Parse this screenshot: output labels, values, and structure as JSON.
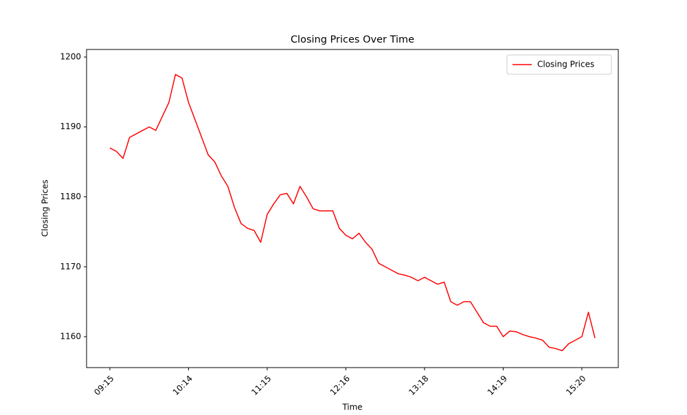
{
  "chart_data": {
    "type": "line",
    "title": "Closing Prices Over Time",
    "xlabel": "Time",
    "ylabel": "Closing Prices",
    "categories": [
      "09:15",
      null,
      null,
      null,
      null,
      null,
      null,
      null,
      null,
      null,
      null,
      null,
      "10:14",
      null,
      null,
      null,
      null,
      null,
      null,
      null,
      null,
      null,
      null,
      null,
      "11:15",
      null,
      null,
      null,
      null,
      null,
      null,
      null,
      null,
      null,
      null,
      null,
      "12:16",
      null,
      null,
      null,
      null,
      null,
      null,
      null,
      null,
      null,
      null,
      null,
      "13:18",
      null,
      null,
      null,
      null,
      null,
      null,
      null,
      null,
      null,
      null,
      null,
      "14:19",
      null,
      null,
      null,
      null,
      null,
      null,
      null,
      null,
      null,
      null,
      null,
      "15:20",
      null,
      null
    ],
    "series": [
      {
        "name": "Closing Prices",
        "color": "#ff0000",
        "values": [
          1187,
          1186.5,
          1185.5,
          1188.5,
          1189,
          1189.5,
          1190,
          1189.5,
          1191.5,
          1193.5,
          1197.5,
          1197,
          1193.5,
          1191,
          1188.5,
          1186,
          1185,
          1183,
          1181.5,
          1178.5,
          1176.2,
          1175.5,
          1175.2,
          1173.5,
          1177.5,
          1179,
          1180.3,
          1180.5,
          1179,
          1181.5,
          1180,
          1178.3,
          1178,
          1178,
          1178,
          1175.5,
          1174.5,
          1174,
          1174.8,
          1173.5,
          1172.5,
          1170.5,
          1170,
          1169.5,
          1169,
          1168.8,
          1168.5,
          1168,
          1168.5,
          1168,
          1167.5,
          1167.8,
          1165,
          1164.5,
          1165,
          1165,
          1163.5,
          1162,
          1161.5,
          1161.5,
          1160,
          1160.8,
          1160.7,
          1160.3,
          1160,
          1159.8,
          1159.5,
          1158.5,
          1158.3,
          1158,
          1159,
          1159.5,
          1160,
          1163.5,
          1159.8
        ]
      }
    ],
    "ylim": [
      1155.58,
      1201.08
    ],
    "yticks": [
      1160,
      1170,
      1180,
      1190,
      1200
    ],
    "legend": "upper right",
    "grid": false
  }
}
